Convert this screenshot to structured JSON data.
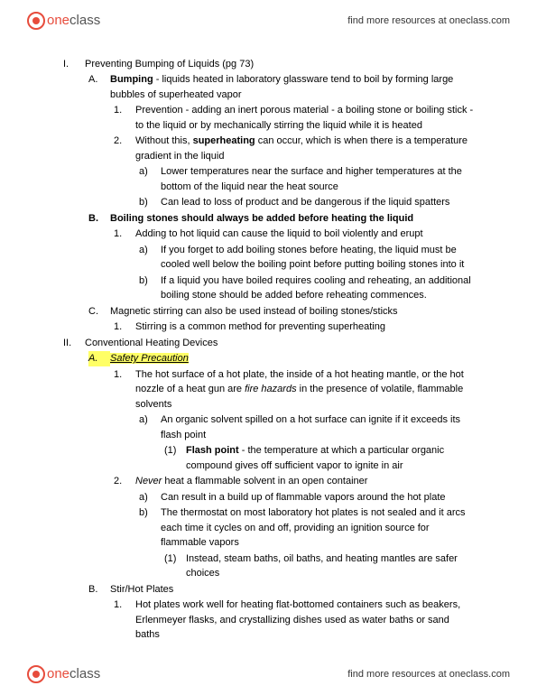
{
  "header": {
    "logo_one": "one",
    "logo_class": "class",
    "link": "find more resources at oneclass.com"
  },
  "footer": {
    "logo_one": "one",
    "logo_class": "class",
    "link": "find more resources at oneclass.com"
  },
  "outline": {
    "s1": {
      "marker": "I.",
      "title": "Preventing Bumping of Liquids (pg 73)",
      "a": {
        "marker": "A.",
        "term": "Bumping",
        "rest": " - liquids heated in laboratory glassware tend to boil by forming large bubbles of superheated vapor",
        "i1": {
          "marker": "1.",
          "text": "Prevention - adding an inert porous material - a boiling stone or boiling stick - to the liquid or by mechanically stirring the liquid while it is heated"
        },
        "i2": {
          "marker": "2.",
          "pre": "Without this, ",
          "term": "superheating",
          "post": " can occur, which is when there is a temperature gradient in the liquid",
          "a": {
            "marker": "a)",
            "text": "Lower temperatures near the surface and higher temperatures at the bottom of the liquid near the heat source"
          },
          "b": {
            "marker": "b)",
            "text": "Can lead to loss of product and be dangerous if the liquid spatters"
          }
        }
      },
      "b": {
        "marker": "B.",
        "title": "Boiling stones should always be added before heating the liquid",
        "i1": {
          "marker": "1.",
          "text": "Adding to hot liquid can cause the liquid to boil violently and erupt",
          "a": {
            "marker": "a)",
            "text": "If you forget to add boiling stones before heating, the liquid must be cooled well below the boiling point before putting boiling stones into it"
          },
          "b": {
            "marker": "b)",
            "text": "If a liquid you have boiled requires cooling and reheating, an additional boiling stone should be added before reheating commences."
          }
        }
      },
      "c": {
        "marker": "C.",
        "text": "Magnetic stirring can also be used instead of boiling stones/sticks",
        "i1": {
          "marker": "1.",
          "text": "Stirring is a common method for preventing superheating"
        }
      }
    },
    "s2": {
      "marker": "II.",
      "title": "Conventional Heating Devices",
      "a": {
        "marker": "A.",
        "title": "Safety Precaution",
        "i1": {
          "marker": "1.",
          "pre": "The hot surface of a hot plate, the inside of a hot heating mantle, or the hot nozzle of a heat gun are ",
          "em": "fire hazards",
          "post": " in the presence of volatile, flammable solvents",
          "a": {
            "marker": "a)",
            "text": "An organic solvent spilled on a hot surface can ignite if it exceeds its flash point",
            "p1": {
              "marker": "(1)",
              "term": "Flash point",
              "rest": " - the temperature at which a particular organic compound gives off sufficient vapor to ignite in air"
            }
          }
        },
        "i2": {
          "marker": "2.",
          "em": "Never",
          "post": " heat a flammable solvent in an open container",
          "a": {
            "marker": "a)",
            "text": "Can result in a build up of flammable vapors around the hot plate"
          },
          "b": {
            "marker": "b)",
            "text": "The thermostat on most laboratory hot plates is not sealed and it arcs each time it cycles on and off, providing an ignition source for flammable vapors",
            "p1": {
              "marker": "(1)",
              "text": "Instead, steam baths, oil baths, and heating mantles are safer choices"
            }
          }
        }
      },
      "b": {
        "marker": "B.",
        "title": "Stir/Hot Plates",
        "i1": {
          "marker": "1.",
          "text": "Hot plates work well for heating flat-bottomed containers such as beakers, Erlenmeyer flasks, and crystallizing dishes used as water baths or sand baths"
        }
      }
    }
  }
}
